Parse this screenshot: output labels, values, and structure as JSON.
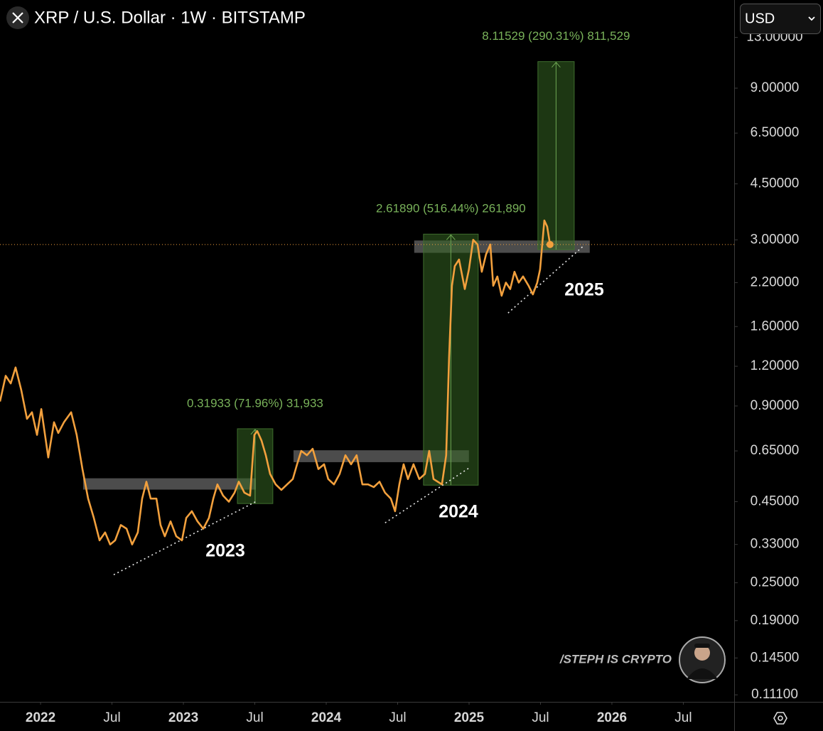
{
  "chart_data": {
    "type": "line",
    "title": "XRP / U.S. Dollar · 1W · BITSTAMP",
    "currency": "USD",
    "log_scale": true,
    "xlim": [
      2021.716,
      2026.856
    ],
    "ylim": [
      0.1055,
      17.05
    ],
    "xticks": [
      2022,
      {
        "value": 2022.5,
        "label": "Jul"
      },
      2023,
      {
        "value": 2023.5,
        "label": "Jul"
      },
      2024,
      {
        "value": 2024.5,
        "label": "Jul"
      },
      2025,
      {
        "value": 2025.5,
        "label": "Jul"
      },
      2026,
      {
        "value": 2026.5,
        "label": "Jul"
      }
    ],
    "yticks": [
      {
        "value": 13,
        "label": "13.00000"
      },
      {
        "value": 9,
        "label": "9.00000"
      },
      {
        "value": 6.5,
        "label": "6.50000"
      },
      {
        "value": 4.5,
        "label": "4.50000"
      },
      {
        "value": 3,
        "label": "3.00000"
      },
      {
        "value": 2.2,
        "label": "2.20000"
      },
      {
        "value": 1.6,
        "label": "1.60000"
      },
      {
        "value": 1.2,
        "label": "1.20000"
      },
      {
        "value": 0.9,
        "label": "0.90000"
      },
      {
        "value": 0.65,
        "label": "0.65000"
      },
      {
        "value": 0.45,
        "label": "0.45000"
      },
      {
        "value": 0.33,
        "label": "0.33000"
      },
      {
        "value": 0.25,
        "label": "0.25000"
      },
      {
        "value": 0.19,
        "label": "0.19000"
      },
      {
        "value": 0.145,
        "label": "0.14500"
      },
      {
        "value": 0.111,
        "label": "0.11100"
      }
    ],
    "series": [
      {
        "color": "#f2a03d",
        "x": [
          2021.716,
          2021.756,
          2021.791,
          2021.825,
          2021.865,
          2021.905,
          2021.94,
          2021.975,
          2022.005,
          2022.054,
          2022.094,
          2022.124,
          2022.164,
          2022.214,
          2022.253,
          2022.293,
          2022.333,
          2022.373,
          2022.413,
          2022.452,
          2022.487,
          2022.522,
          2022.562,
          2022.602,
          2022.641,
          2022.681,
          2022.711,
          2022.741,
          2022.771,
          2022.811,
          2022.84,
          2022.87,
          2022.91,
          2022.95,
          2022.99,
          2023.02,
          2023.059,
          2023.099,
          2023.139,
          2023.179,
          2023.209,
          2023.238,
          2023.278,
          2023.318,
          2023.358,
          2023.388,
          2023.427,
          2023.467,
          2023.497,
          2023.517,
          2023.547,
          2023.577,
          2023.607,
          2023.646,
          2023.686,
          2023.726,
          2023.766,
          2023.796,
          2023.825,
          2023.865,
          2023.905,
          2023.945,
          2023.985,
          2024.014,
          2024.054,
          2024.094,
          2024.134,
          2024.174,
          2024.213,
          2024.253,
          2024.293,
          2024.333,
          2024.373,
          2024.412,
          2024.452,
          2024.482,
          2024.512,
          2024.542,
          2024.572,
          2024.611,
          2024.651,
          2024.691,
          2024.721,
          2024.751,
          2024.78,
          2024.81,
          2024.84,
          2024.86,
          2024.88,
          2024.9,
          2024.93,
          2024.97,
          2024.999,
          2025.029,
          2025.059,
          2025.089,
          2025.119,
          2025.149,
          2025.169,
          2025.198,
          2025.228,
          2025.258,
          2025.288,
          2025.318,
          2025.348,
          2025.378,
          2025.417,
          2025.447,
          2025.477,
          2025.497,
          2025.527,
          2025.547,
          2025.567
        ],
        "values": [
          0.93,
          1.12,
          1.06,
          1.19,
          1.01,
          0.82,
          0.86,
          0.73,
          0.88,
          0.62,
          0.8,
          0.74,
          0.8,
          0.86,
          0.73,
          0.57,
          0.46,
          0.4,
          0.34,
          0.36,
          0.33,
          0.34,
          0.38,
          0.37,
          0.33,
          0.36,
          0.46,
          0.52,
          0.46,
          0.46,
          0.38,
          0.35,
          0.39,
          0.35,
          0.34,
          0.4,
          0.42,
          0.39,
          0.37,
          0.4,
          0.46,
          0.51,
          0.47,
          0.45,
          0.48,
          0.52,
          0.48,
          0.47,
          0.73,
          0.75,
          0.7,
          0.63,
          0.55,
          0.51,
          0.49,
          0.51,
          0.53,
          0.59,
          0.65,
          0.63,
          0.66,
          0.57,
          0.59,
          0.53,
          0.51,
          0.55,
          0.63,
          0.59,
          0.63,
          0.51,
          0.51,
          0.5,
          0.52,
          0.48,
          0.46,
          0.42,
          0.51,
          0.59,
          0.53,
          0.59,
          0.53,
          0.55,
          0.65,
          0.53,
          0.52,
          0.51,
          0.63,
          1.28,
          2.15,
          2.48,
          2.6,
          2.1,
          2.42,
          3.0,
          2.9,
          2.38,
          2.7,
          2.9,
          2.15,
          2.3,
          2.0,
          2.2,
          2.1,
          2.38,
          2.2,
          2.3,
          2.15,
          2.02,
          2.2,
          2.42,
          3.45,
          3.3,
          2.9
        ]
      }
    ],
    "measures": [
      {
        "x": [
          2023.378,
          2023.626
        ],
        "y": [
          0.4438,
          0.7631
        ],
        "label": "0.31933 (71.96%) 31,933"
      },
      {
        "x": [
          2024.681,
          2025.064
        ],
        "y": [
          0.5071,
          3.126
        ],
        "label": "2.61890 (516.44%) 261,890"
      },
      {
        "x": [
          2025.482,
          2025.736
        ],
        "y": [
          2.7954,
          10.911
        ],
        "label": "8.11529 (290.31%) 811,529"
      }
    ],
    "zones": [
      {
        "x": [
          2022.298,
          2023.507
        ],
        "y": [
          0.491,
          0.533
        ]
      },
      {
        "x": [
          2023.771,
          2024.999
        ],
        "y": [
          0.599,
          0.653
        ]
      },
      {
        "x": [
          2024.616,
          2025.845
        ],
        "y": [
          2.73,
          2.985
        ]
      }
    ],
    "trendlines": [
      {
        "x": [
          2022.512,
          2023.507
        ],
        "y": [
          0.265,
          0.45
        ]
      },
      {
        "x": [
          2024.412,
          2024.999
        ],
        "y": [
          0.386,
          0.574
        ]
      },
      {
        "x": [
          2025.273,
          2025.805
        ],
        "y": [
          1.765,
          2.88
        ]
      }
    ],
    "annotations": [
      "2023",
      "2024",
      "2025"
    ],
    "watermark": "/STEPH IS CRYPTO"
  }
}
